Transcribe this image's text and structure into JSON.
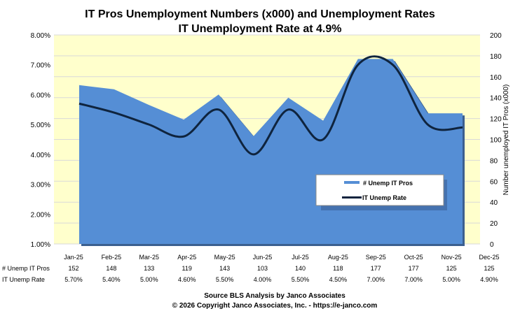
{
  "chart_data": {
    "type": "area+line",
    "title": "IT Pros Unemployment Numbers (x000) and Unemployment Rates",
    "subtitle": "IT Unemployment Rate at 4.9%",
    "categories": [
      "Jan-25",
      "Feb-25",
      "Mar-25",
      "Apr-25",
      "May-25",
      "Jun-25",
      "Jul-25",
      "Aug-25",
      "Sep-25",
      "Oct-25",
      "Nov-25",
      "Dec-25"
    ],
    "series": [
      {
        "name": "# Unemp IT Pros",
        "axis": "right",
        "type": "area",
        "color": "#558ed5",
        "values": [
          152,
          148,
          133,
          119,
          143,
          103,
          140,
          118,
          177,
          177,
          125,
          125
        ]
      },
      {
        "name": "IT Unemp Rate",
        "axis": "left",
        "type": "line",
        "color": "#0f243e",
        "values": [
          5.7,
          5.4,
          5.0,
          4.6,
          5.5,
          4.0,
          5.5,
          4.5,
          7.0,
          7.0,
          5.0,
          4.9
        ]
      }
    ],
    "table_rows": [
      {
        "label": "# Unemp IT Pros",
        "values": [
          "152",
          "148",
          "133",
          "119",
          "143",
          "103",
          "140",
          "118",
          "177",
          "177",
          "125",
          "125"
        ]
      },
      {
        "label": "IT Unemp Rate",
        "values": [
          "5.70%",
          "5.40%",
          "5.00%",
          "4.60%",
          "5.50%",
          "4.00%",
          "5.50%",
          "4.50%",
          "7.00%",
          "7.00%",
          "5.00%",
          "4.90%"
        ]
      }
    ],
    "left_axis": {
      "ylim": [
        1,
        8
      ],
      "ticks": [
        "1.00%",
        "2.00%",
        "3.00%",
        "4.00%",
        "5.00%",
        "6.00%",
        "7.00%",
        "8.00%"
      ]
    },
    "right_axis": {
      "ylim": [
        0,
        200
      ],
      "label": "Number unemployed IT Pros (x000)",
      "ticks": [
        "0",
        "20",
        "40",
        "60",
        "80",
        "100",
        "120",
        "140",
        "160",
        "180",
        "200"
      ]
    },
    "grid": true,
    "plot_background": "#ffffcc",
    "legend_position": "right-middle",
    "footer": [
      "Source BLS Analysis by Janco Associates",
      "© 2026 Copyright Janco Associates, Inc. - https://e-janco.com"
    ]
  }
}
